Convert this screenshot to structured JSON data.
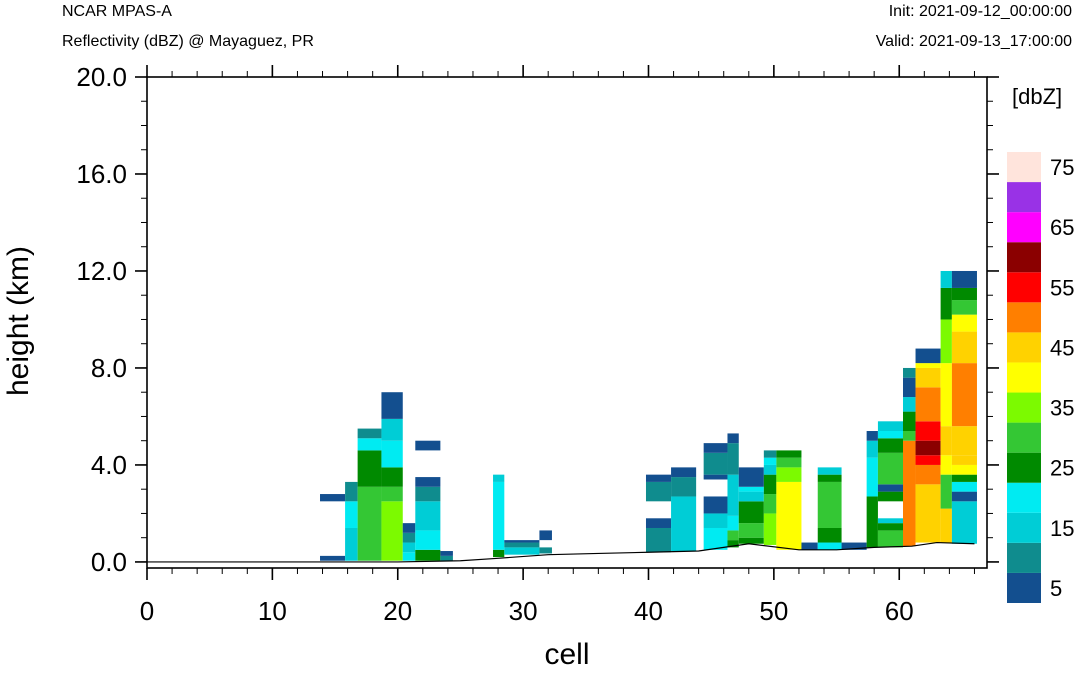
{
  "header": {
    "model": "NCAR MPAS-A",
    "field": "Reflectivity (dBZ) @ Mayaguez, PR",
    "init": "Init: 2021-09-12_00:00:00",
    "valid": "Valid: 2021-09-13_17:00:00"
  },
  "colorbar": {
    "unit_label": "[dbZ]",
    "labels": [
      "5",
      "15",
      "25",
      "35",
      "45",
      "55",
      "65",
      "75"
    ],
    "colors": [
      "#134f8f",
      "#0f8c8e",
      "#00cdd6",
      "#00ebf2",
      "#008a00",
      "#34c734",
      "#7cfa00",
      "#ffff00",
      "#ffd200",
      "#ff7f00",
      "#ff0000",
      "#8b0000",
      "#ff00ff",
      "#9932e6",
      "#ffe4dc"
    ]
  },
  "chart_data": {
    "type": "heatmap",
    "title": "",
    "xlabel": "cell",
    "ylabel": "height (km)",
    "xlim": [
      0,
      67
    ],
    "ylim": [
      0,
      20
    ],
    "x_ticks": [
      0,
      10,
      20,
      30,
      40,
      50,
      60
    ],
    "y_ticks": [
      "0.0",
      "4.0",
      "8.0",
      "12.0",
      "16.0",
      "20.0"
    ],
    "terrain": [
      [
        0,
        0
      ],
      [
        14,
        0
      ],
      [
        20,
        0
      ],
      [
        25,
        0.05
      ],
      [
        28,
        0.15
      ],
      [
        32,
        0.3
      ],
      [
        36,
        0.35
      ],
      [
        40,
        0.4
      ],
      [
        44,
        0.45
      ],
      [
        48,
        0.75
      ],
      [
        52,
        0.5
      ],
      [
        55,
        0.5
      ],
      [
        58,
        0.6
      ],
      [
        61,
        0.65
      ],
      [
        63,
        0.8
      ],
      [
        66,
        0.75
      ]
    ],
    "columns": [
      {
        "x": [
          13.8,
          15.8
        ],
        "cells": [
          [
            0.05,
            0.25,
            5
          ],
          [
            2.5,
            2.8,
            5
          ]
        ]
      },
      {
        "x": [
          15.8,
          16.8
        ],
        "cells": [
          [
            0.05,
            1.4,
            15
          ],
          [
            1.4,
            2.5,
            20
          ],
          [
            2.5,
            3.3,
            10
          ]
        ]
      },
      {
        "x": [
          16.8,
          18.7
        ],
        "cells": [
          [
            0.05,
            3.1,
            30
          ],
          [
            3.1,
            4.6,
            25
          ],
          [
            4.6,
            5.1,
            20
          ],
          [
            5.1,
            5.5,
            10
          ]
        ]
      },
      {
        "x": [
          18.7,
          20.4
        ],
        "cells": [
          [
            0.05,
            2.5,
            35
          ],
          [
            2.5,
            3.1,
            30
          ],
          [
            3.1,
            3.9,
            25
          ],
          [
            3.9,
            5.0,
            20
          ],
          [
            5.0,
            5.9,
            15
          ],
          [
            5.9,
            7.0,
            5
          ]
        ]
      },
      {
        "x": [
          20.4,
          21.4
        ],
        "cells": [
          [
            0.05,
            0.4,
            20
          ],
          [
            0.4,
            0.8,
            15
          ],
          [
            0.8,
            1.2,
            10
          ],
          [
            1.2,
            1.6,
            5
          ]
        ]
      },
      {
        "x": [
          21.4,
          23.4
        ],
        "cells": [
          [
            0.05,
            0.5,
            25
          ],
          [
            0.5,
            1.3,
            20
          ],
          [
            1.3,
            2.5,
            15
          ],
          [
            2.5,
            3.1,
            10
          ],
          [
            3.1,
            3.5,
            5
          ],
          [
            4.6,
            5.0,
            5
          ]
        ]
      },
      {
        "x": [
          23.4,
          24.4
        ],
        "cells": [
          [
            0.05,
            0.25,
            10
          ],
          [
            0.25,
            0.45,
            5
          ]
        ]
      },
      {
        "x": [
          27.6,
          28.5
        ],
        "cells": [
          [
            0.2,
            0.5,
            25
          ],
          [
            0.5,
            3.3,
            20
          ],
          [
            3.3,
            3.6,
            15
          ]
        ]
      },
      {
        "x": [
          28.5,
          31.3
        ],
        "cells": [
          [
            0.3,
            0.6,
            15
          ],
          [
            0.6,
            0.8,
            10
          ],
          [
            0.8,
            0.9,
            5
          ]
        ]
      },
      {
        "x": [
          31.3,
          32.3
        ],
        "cells": [
          [
            0.35,
            0.6,
            10
          ],
          [
            0.9,
            1.3,
            5
          ]
        ]
      },
      {
        "x": [
          39.8,
          41.8
        ],
        "cells": [
          [
            0.4,
            1.4,
            10
          ],
          [
            1.4,
            1.8,
            5
          ],
          [
            2.5,
            3.3,
            10
          ],
          [
            3.3,
            3.6,
            5
          ]
        ]
      },
      {
        "x": [
          41.8,
          43.8
        ],
        "cells": [
          [
            0.45,
            2.7,
            15
          ],
          [
            2.7,
            3.5,
            10
          ],
          [
            3.5,
            3.9,
            5
          ]
        ]
      },
      {
        "x": [
          44.4,
          46.3
        ],
        "cells": [
          [
            0.5,
            1.4,
            20
          ],
          [
            1.4,
            2.0,
            15
          ],
          [
            2.0,
            2.7,
            5
          ],
          [
            3.4,
            3.6,
            5
          ],
          [
            3.6,
            4.5,
            10
          ],
          [
            4.5,
            4.9,
            5
          ]
        ]
      },
      {
        "x": [
          46.3,
          47.2
        ],
        "cells": [
          [
            0.6,
            0.9,
            25
          ],
          [
            0.9,
            1.3,
            30
          ],
          [
            1.3,
            1.9,
            20
          ],
          [
            1.9,
            3.6,
            15
          ],
          [
            3.6,
            4.9,
            10
          ],
          [
            4.9,
            5.3,
            5
          ]
        ]
      },
      {
        "x": [
          47.2,
          49.2
        ],
        "cells": [
          [
            0.75,
            1.0,
            25
          ],
          [
            1.0,
            1.6,
            30
          ],
          [
            1.6,
            2.5,
            25
          ],
          [
            2.5,
            2.9,
            15
          ],
          [
            2.9,
            3.1,
            20
          ],
          [
            3.1,
            3.9,
            5
          ]
        ]
      },
      {
        "x": [
          49.2,
          50.2
        ],
        "cells": [
          [
            0.7,
            2.0,
            35
          ],
          [
            2.0,
            2.8,
            30
          ],
          [
            2.8,
            3.6,
            25
          ],
          [
            3.6,
            4.0,
            15
          ],
          [
            4.0,
            4.3,
            20
          ],
          [
            4.3,
            4.6,
            10
          ]
        ]
      },
      {
        "x": [
          50.2,
          52.2
        ],
        "cells": [
          [
            0.5,
            3.3,
            40
          ],
          [
            3.3,
            3.9,
            35
          ],
          [
            3.9,
            4.3,
            30
          ],
          [
            4.3,
            4.6,
            25
          ]
        ]
      },
      {
        "x": [
          52.2,
          53.5
        ],
        "cells": [
          [
            0.5,
            0.8,
            5
          ]
        ]
      },
      {
        "x": [
          53.5,
          55.4
        ],
        "cells": [
          [
            0.5,
            0.8,
            20
          ],
          [
            0.8,
            1.4,
            25
          ],
          [
            1.4,
            3.3,
            30
          ],
          [
            3.3,
            3.6,
            25
          ],
          [
            3.6,
            3.9,
            15
          ]
        ]
      },
      {
        "x": [
          55.4,
          57.4
        ],
        "cells": [
          [
            0.5,
            0.8,
            5
          ]
        ]
      },
      {
        "x": [
          57.4,
          58.3
        ],
        "cells": [
          [
            0.6,
            2.7,
            25
          ],
          [
            2.7,
            4.3,
            20
          ],
          [
            4.3,
            5.0,
            15
          ],
          [
            5.0,
            5.4,
            5
          ]
        ]
      },
      {
        "x": [
          58.3,
          60.3
        ],
        "cells": [
          [
            0.6,
            1.3,
            30
          ],
          [
            1.3,
            1.6,
            25
          ],
          [
            1.6,
            1.8,
            15
          ],
          [
            2.5,
            2.9,
            25
          ],
          [
            2.9,
            3.2,
            5
          ],
          [
            3.2,
            4.5,
            30
          ],
          [
            4.5,
            5.1,
            25
          ],
          [
            5.1,
            5.4,
            20
          ],
          [
            5.4,
            5.8,
            15
          ]
        ]
      },
      {
        "x": [
          60.3,
          61.3
        ],
        "cells": [
          [
            0.65,
            5.0,
            50
          ],
          [
            5.0,
            5.4,
            30
          ],
          [
            5.4,
            6.2,
            25
          ],
          [
            6.2,
            6.8,
            15
          ],
          [
            6.8,
            7.6,
            5
          ],
          [
            7.6,
            8.0,
            10
          ]
        ]
      },
      {
        "x": [
          61.3,
          63.3
        ],
        "cells": [
          [
            0.8,
            3.2,
            45
          ],
          [
            3.2,
            4.0,
            50
          ],
          [
            4.0,
            4.4,
            55
          ],
          [
            4.4,
            5.0,
            60
          ],
          [
            5.0,
            5.8,
            55
          ],
          [
            5.8,
            7.2,
            50
          ],
          [
            7.2,
            8.0,
            45
          ],
          [
            8.0,
            8.2,
            40
          ],
          [
            8.2,
            8.8,
            5
          ]
        ]
      },
      {
        "x": [
          63.3,
          64.2
        ],
        "cells": [
          [
            0.8,
            2.2,
            45
          ],
          [
            2.2,
            3.6,
            30
          ],
          [
            3.6,
            4.4,
            40
          ],
          [
            4.4,
            5.6,
            45
          ],
          [
            5.6,
            8.2,
            40
          ],
          [
            8.2,
            10.0,
            35
          ],
          [
            10.0,
            11.3,
            25
          ],
          [
            11.3,
            12.0,
            15
          ]
        ]
      },
      {
        "x": [
          64.2,
          66.2
        ],
        "cells": [
          [
            0.75,
            2.5,
            15
          ],
          [
            2.5,
            2.9,
            5
          ],
          [
            2.9,
            3.3,
            20
          ],
          [
            3.3,
            3.6,
            25
          ],
          [
            3.6,
            4.0,
            40
          ],
          [
            4.0,
            4.4,
            45
          ],
          [
            4.4,
            5.6,
            45
          ],
          [
            5.6,
            8.2,
            50
          ],
          [
            8.2,
            9.5,
            45
          ],
          [
            9.5,
            10.2,
            40
          ],
          [
            10.2,
            10.8,
            30
          ],
          [
            10.8,
            11.3,
            25
          ],
          [
            11.3,
            12.0,
            5
          ]
        ]
      }
    ]
  }
}
